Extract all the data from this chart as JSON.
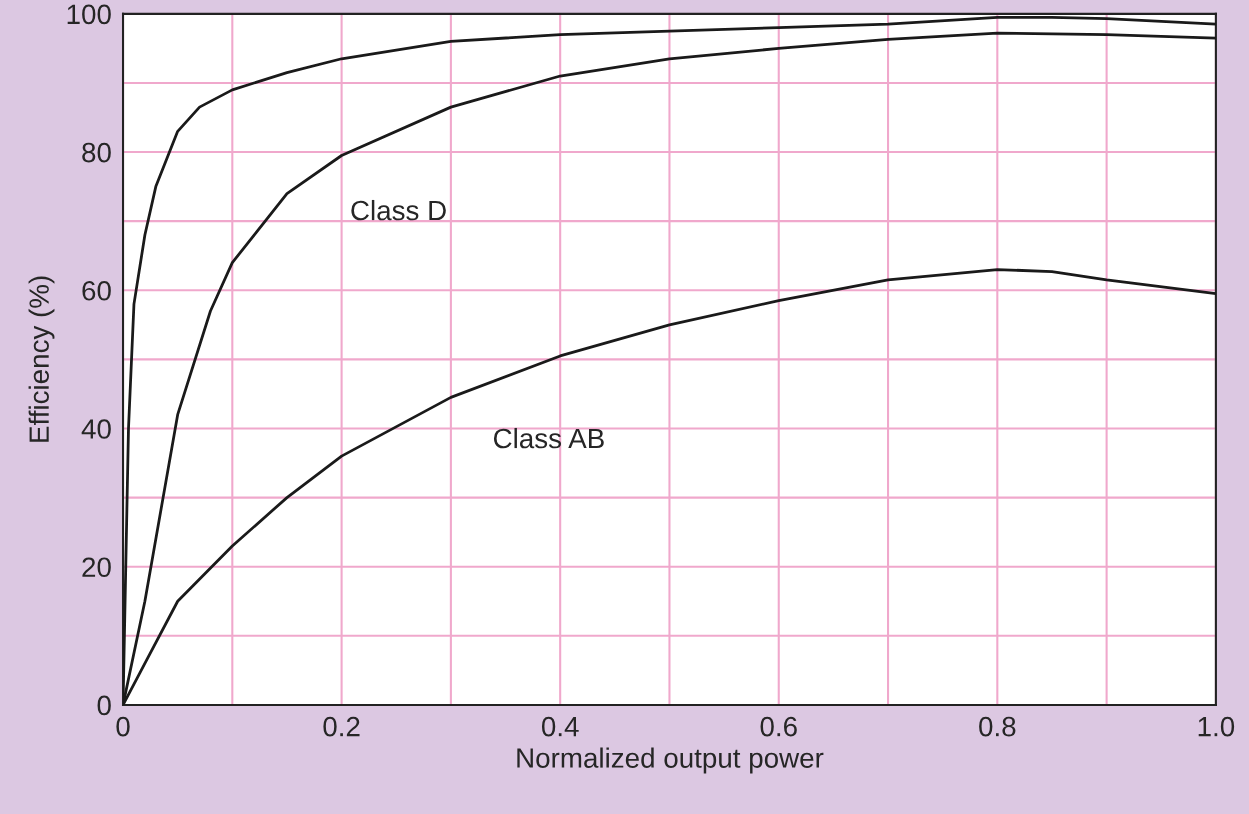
{
  "chart_data": {
    "type": "line",
    "xlabel": "Normalized output power",
    "ylabel": "Efficiency (%)",
    "xlim": [
      0,
      1.0
    ],
    "ylim": [
      0,
      100
    ],
    "xticks": [
      {
        "value": 0,
        "label": "0"
      },
      {
        "value": 0.1,
        "label": null
      },
      0.2,
      {
        "value": 0.3,
        "label": null
      },
      0.4,
      {
        "value": 0.5,
        "label": null
      },
      0.6,
      {
        "value": 0.7,
        "label": null
      },
      0.8,
      {
        "value": 0.9,
        "label": null
      },
      {
        "value": 1.0,
        "label": "1.0"
      }
    ],
    "yticks": [
      0,
      {
        "value": 10,
        "label": null
      },
      20,
      {
        "value": 30,
        "label": null
      },
      40,
      {
        "value": 50,
        "label": null
      },
      60,
      {
        "value": 70,
        "label": null
      },
      80,
      {
        "value": 90,
        "label": null
      },
      100
    ],
    "grid": true,
    "marker": "none",
    "line_style": "solid",
    "series": [
      {
        "color": "#1a1a1a",
        "x": [
          0,
          0.005,
          0.01,
          0.02,
          0.03,
          0.05,
          0.07,
          0.1,
          0.15,
          0.2,
          0.3,
          0.4,
          0.5,
          0.6,
          0.7,
          0.8,
          0.85,
          0.9,
          1.0
        ],
        "values": [
          0,
          40,
          58,
          68,
          75,
          83,
          86.5,
          89,
          91.5,
          93.5,
          96,
          97,
          97.5,
          98,
          98.5,
          99.5,
          99.5,
          99.3,
          98.5
        ]
      },
      {
        "name": "Class D",
        "color": "#1a1a1a",
        "x": [
          0,
          0.02,
          0.05,
          0.08,
          0.1,
          0.15,
          0.2,
          0.3,
          0.4,
          0.5,
          0.6,
          0.7,
          0.8,
          0.9,
          1.0
        ],
        "values": [
          0,
          15,
          42,
          57,
          64,
          74,
          79.5,
          86.5,
          91,
          93.5,
          95,
          96.3,
          97.2,
          97,
          96.5
        ]
      },
      {
        "name": "Class AB",
        "color": "#1a1a1a",
        "x": [
          0,
          0.02,
          0.05,
          0.1,
          0.15,
          0.2,
          0.3,
          0.4,
          0.5,
          0.6,
          0.7,
          0.8,
          0.85,
          0.9,
          1.0
        ],
        "values": [
          0,
          6,
          15,
          23,
          30,
          36,
          44.5,
          50.5,
          55,
          58.5,
          61.5,
          63,
          62.7,
          61.5,
          59.5
        ]
      }
    ]
  }
}
